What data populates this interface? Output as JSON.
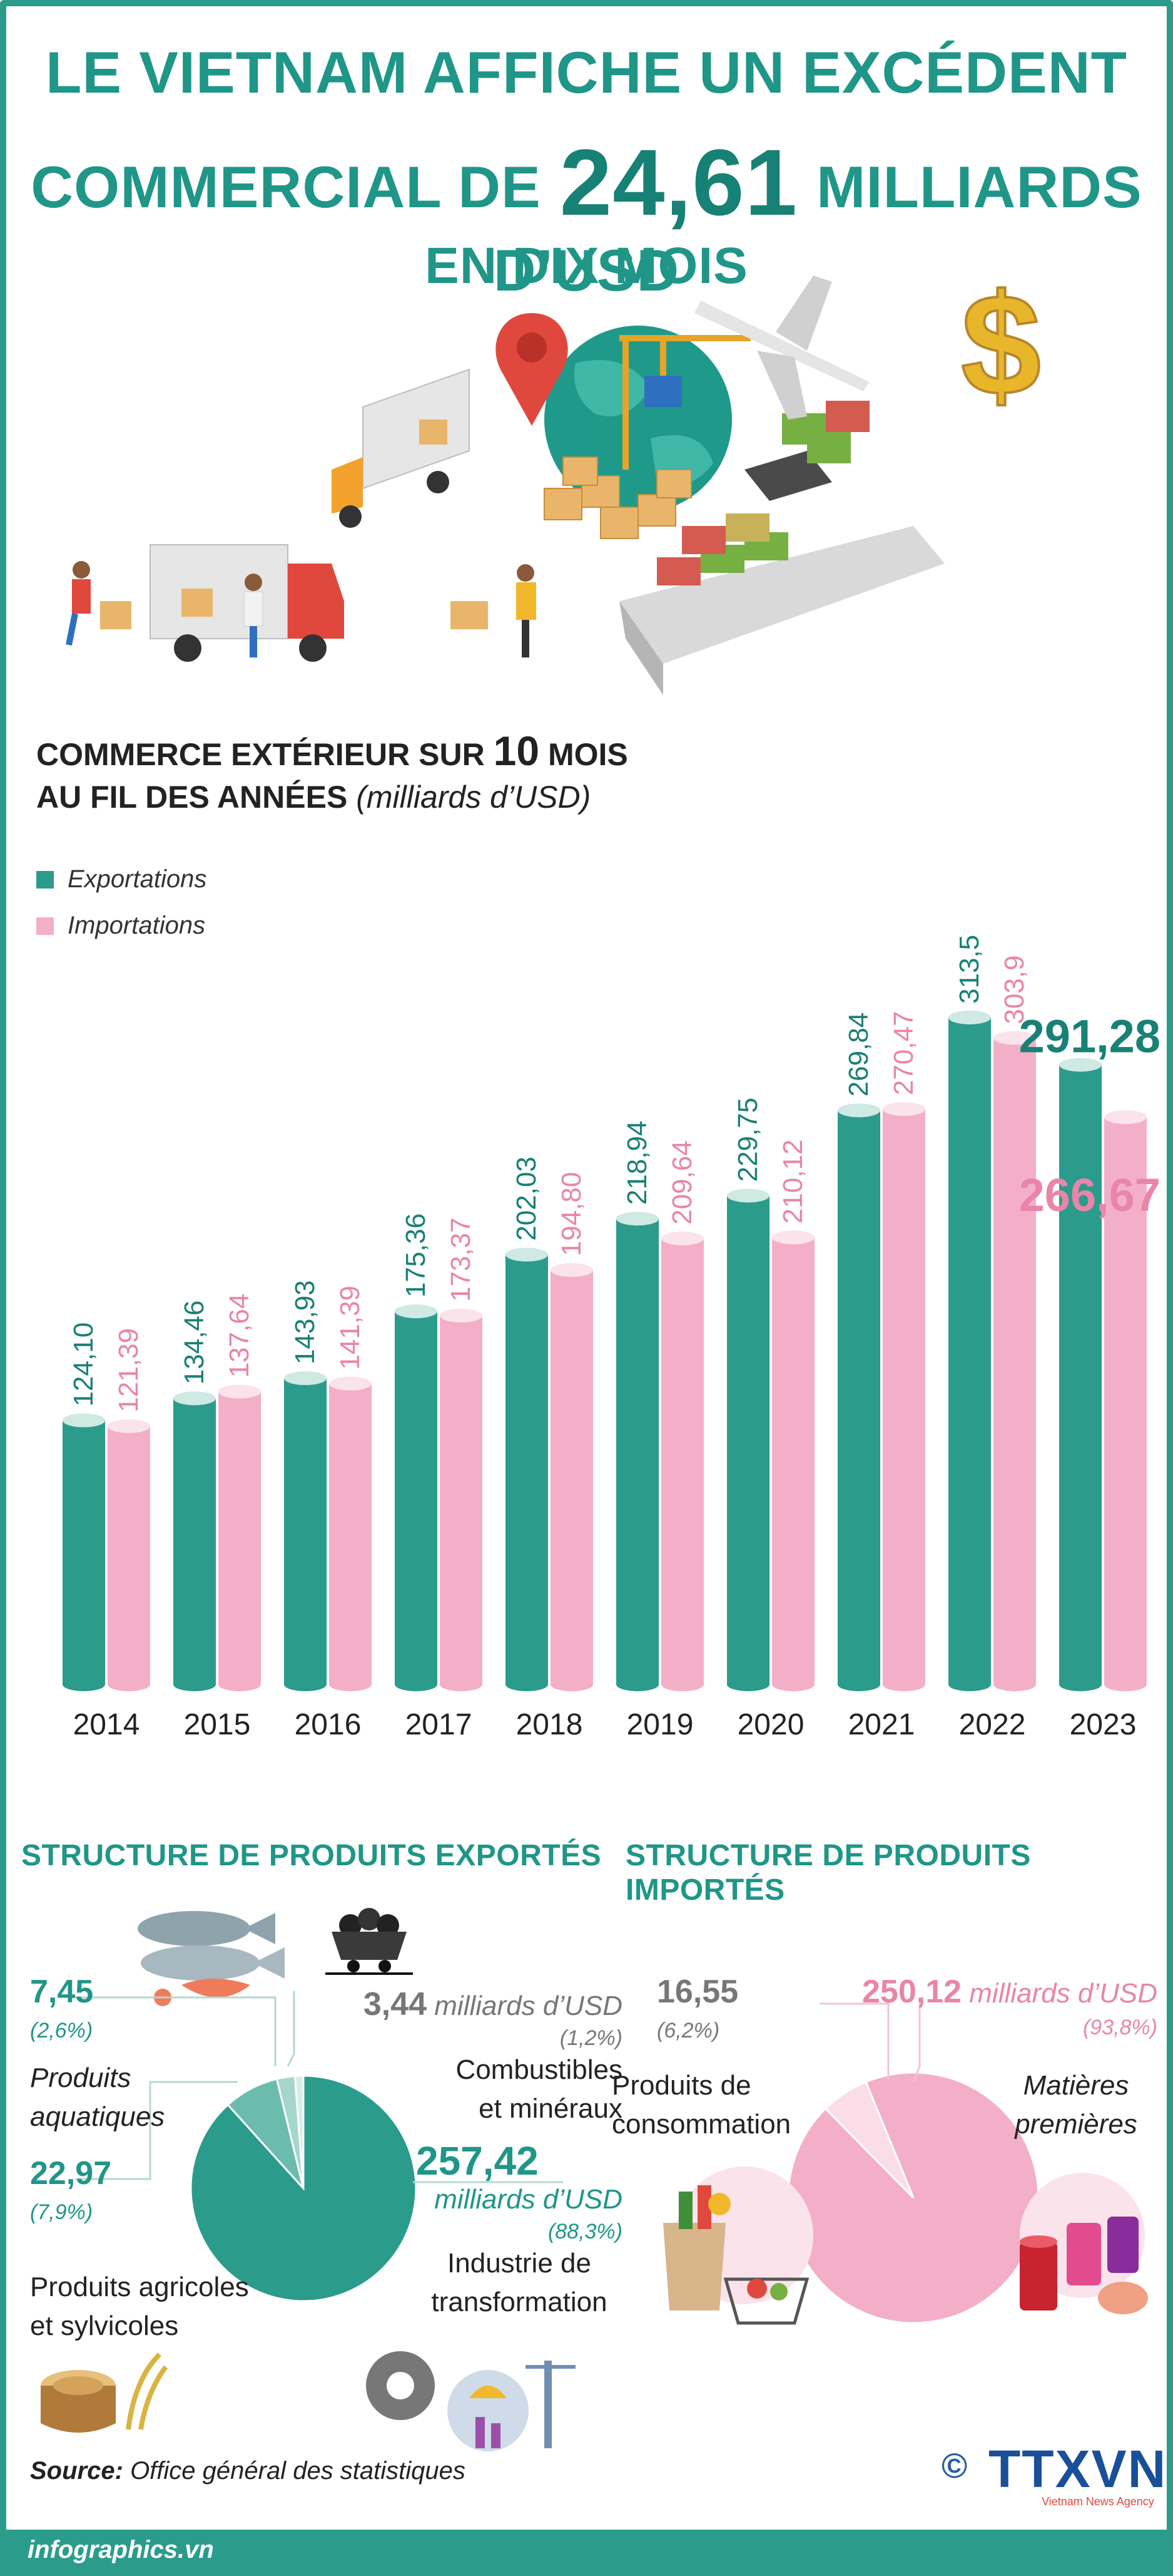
{
  "header": {
    "line1": "LE VIETNAM AFFICHE UN EXCÉDENT",
    "line2_pre": "COMMERCIAL DE",
    "line2_value": "24,61",
    "line2_post": "MILLIARDS D’USD",
    "line3": "EN DIX MOIS"
  },
  "chart_title": {
    "pre": "COMMERCE EXTÉRIEUR SUR",
    "number": "10",
    "post": "MOIS",
    "line2": "AU FIL DES ANNÉES",
    "unit": "(milliards d’USD)"
  },
  "legend": {
    "exports": "Exportations",
    "imports": "Importations"
  },
  "colors": {
    "teal": "#2b9b8c",
    "teal_dark": "#188175",
    "teal_top": "#cfe9e3",
    "pink": "#f4afc8",
    "pink_text": "#e985a9",
    "pink_top": "#fbe3ec"
  },
  "chart_data": {
    "type": "bar",
    "categories": [
      "2014",
      "2015",
      "2016",
      "2017",
      "2018",
      "2019",
      "2020",
      "2021",
      "2022",
      "2023"
    ],
    "series": [
      {
        "name": "Exportations",
        "values": [
          124.1,
          134.46,
          143.93,
          175.36,
          202.03,
          218.94,
          229.75,
          269.84,
          313.5,
          291.28
        ],
        "labels": [
          "124,10",
          "134,46",
          "143,93",
          "175,36",
          "202,03",
          "218,94",
          "229,75",
          "269,84",
          "313,5",
          "291,28"
        ]
      },
      {
        "name": "Importations",
        "values": [
          121.39,
          137.64,
          141.39,
          173.37,
          194.8,
          209.64,
          210.12,
          270.47,
          303.9,
          266.67
        ],
        "labels": [
          "121,39",
          "137,64",
          "141,39",
          "173,37",
          "194,80",
          "209,64",
          "210,12",
          "270,47",
          "303,9",
          "266,67"
        ]
      }
    ],
    "ylim": [
      0,
      320
    ]
  },
  "exports_structure": {
    "heading": "STRUCTURE DE PRODUITS EXPORTÉS",
    "items": [
      {
        "value": "7,45",
        "pct": "(2,6%)",
        "label1": "Produits",
        "label2": "aquatiques"
      },
      {
        "value": "3,44",
        "unit": "milliards d’USD",
        "pct": "(1,2%)",
        "label1": "Combustibles",
        "label2": "et minéraux"
      },
      {
        "value": "22,97",
        "pct": "(7,9%)",
        "label1": "Produits agricoles",
        "label2": "et sylvicoles"
      },
      {
        "value": "257,42",
        "unit": "milliards d’USD",
        "pct": "(88,3%)",
        "label1": "Industrie de",
        "label2": "transformation"
      }
    ],
    "pie": [
      {
        "name": "Industrie de transformation",
        "value": 88.3,
        "color": "#2b9b8c"
      },
      {
        "name": "Produits agricoles et sylvicoles",
        "value": 7.9,
        "color": "#6cbcae"
      },
      {
        "name": "Produits aquatiques",
        "value": 2.6,
        "color": "#a5d6cc"
      },
      {
        "name": "Combustibles et minéraux",
        "value": 1.2,
        "color": "#d6ede8"
      }
    ]
  },
  "imports_structure": {
    "heading": "STRUCTURE DE PRODUITS IMPORTÉS",
    "items": [
      {
        "value": "16,55",
        "pct": "(6,2%)",
        "label1": "Produits de",
        "label2": "consommation"
      },
      {
        "value": "250,12",
        "unit": "milliards d’USD",
        "pct": "(93,8%)",
        "label1": "Matières",
        "label2": "premières"
      }
    ],
    "pie": [
      {
        "name": "Matières premières",
        "value": 93.8,
        "color": "#f4afc8"
      },
      {
        "name": "Produits de consommation",
        "value": 6.2,
        "color": "#fbdde8"
      }
    ]
  },
  "footer": {
    "source_label": "Source:",
    "source_text": "Office général des statistiques",
    "site": "infographics.vn",
    "logo": "TTXVN",
    "agency": "Vietnam News Agency",
    "copyright": "©"
  }
}
